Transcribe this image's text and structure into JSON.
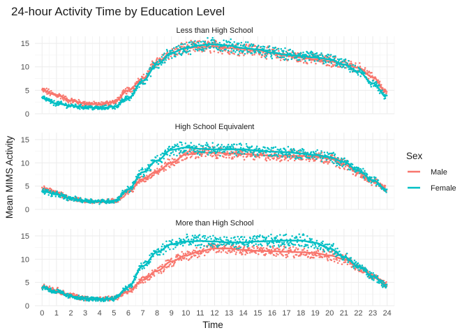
{
  "chart_data": {
    "type": "scatter",
    "title": "24-hour Activity Time by Education Level",
    "xlabel": "Time",
    "ylabel": "Mean MIMS Activity",
    "xlim": [
      -0.5,
      24.5
    ],
    "ylim": [
      0,
      16.5
    ],
    "x_ticks": [
      0,
      1,
      2,
      3,
      4,
      5,
      6,
      7,
      8,
      9,
      10,
      11,
      12,
      13,
      14,
      15,
      16,
      17,
      18,
      19,
      20,
      21,
      22,
      23,
      24
    ],
    "y_ticks": [
      0,
      5,
      10,
      15
    ],
    "grid": true,
    "smooth_lines": true,
    "legend": {
      "title": "Sex",
      "position": "right",
      "entries": [
        {
          "name": "Male",
          "color": "#F8766D"
        },
        {
          "name": "Female",
          "color": "#00BFC4"
        }
      ]
    },
    "panels": [
      {
        "label": "Less than High School",
        "series": [
          {
            "name": "Male",
            "color": "#F8766D",
            "x": [
              0,
              1,
              2,
              3,
              4,
              5,
              6,
              7,
              8,
              9,
              10,
              11,
              12,
              13,
              14,
              15,
              16,
              17,
              18,
              19,
              20,
              21,
              22,
              23,
              24
            ],
            "y": [
              5,
              4,
              2.8,
              2.2,
              2,
              2.5,
              5,
              7.5,
              11,
              13,
              14,
              14.2,
              14.3,
              14,
              13.8,
              13.5,
              12.9,
              12.4,
              12,
              11.6,
              11.2,
              10.5,
              9.8,
              7.8,
              4.5
            ]
          },
          {
            "name": "Female",
            "color": "#00BFC4",
            "x": [
              0,
              1,
              2,
              3,
              4,
              5,
              6,
              7,
              8,
              9,
              10,
              11,
              12,
              13,
              14,
              15,
              16,
              17,
              18,
              19,
              20,
              21,
              22,
              23,
              24
            ],
            "y": [
              3.3,
              2.2,
              1.7,
              1.4,
              1.2,
              1.5,
              3.3,
              7,
              10.5,
              13,
              14,
              14.6,
              14.8,
              14.5,
              14,
              13.7,
              13,
              12.6,
              12.3,
              12,
              11.6,
              10.5,
              9,
              6.5,
              3.5
            ]
          }
        ]
      },
      {
        "label": "High School Equivalent",
        "series": [
          {
            "name": "Male",
            "color": "#F8766D",
            "x": [
              0,
              1,
              2,
              3,
              4,
              5,
              6,
              7,
              8,
              9,
              10,
              11,
              12,
              13,
              14,
              15,
              16,
              17,
              18,
              19,
              20,
              21,
              22,
              23,
              24
            ],
            "y": [
              4.5,
              3.6,
              2.4,
              1.8,
              1.6,
              1.8,
              3.8,
              6.5,
              8.2,
              10,
              11.8,
              12.2,
              12.2,
              12,
              11.9,
              11.7,
              11.5,
              11.5,
              11.5,
              11.4,
              10.9,
              9.7,
              7.8,
              6,
              4.5
            ]
          },
          {
            "name": "Female",
            "color": "#00BFC4",
            "x": [
              0,
              1,
              2,
              3,
              4,
              5,
              6,
              7,
              8,
              9,
              10,
              11,
              12,
              13,
              14,
              15,
              16,
              17,
              18,
              19,
              20,
              21,
              22,
              23,
              24
            ],
            "y": [
              4,
              3.2,
              2.3,
              1.9,
              1.7,
              1.8,
              4.3,
              8,
              10.5,
              12.8,
              13.3,
              13,
              12.9,
              12.9,
              12.9,
              12.6,
              12.4,
              12.3,
              12,
              11.7,
              11.2,
              10.2,
              8.3,
              6.3,
              4.2
            ]
          }
        ]
      },
      {
        "label": "More than High School",
        "series": [
          {
            "name": "Male",
            "color": "#F8766D",
            "x": [
              0,
              1,
              2,
              3,
              4,
              5,
              6,
              7,
              8,
              9,
              10,
              11,
              12,
              13,
              14,
              15,
              16,
              17,
              18,
              19,
              20,
              21,
              22,
              23,
              24
            ],
            "y": [
              4.2,
              3.3,
              2.2,
              1.6,
              1.4,
              1.6,
              3,
              5.5,
              7.5,
              9.5,
              10.8,
              11.7,
              12.3,
              12.3,
              12,
              11.8,
              11.7,
              11.6,
              11.5,
              11.3,
              10.8,
              10,
              8.2,
              6.5,
              4.5
            ]
          },
          {
            "name": "Female",
            "color": "#00BFC4",
            "x": [
              0,
              1,
              2,
              3,
              4,
              5,
              6,
              7,
              8,
              9,
              10,
              11,
              12,
              13,
              14,
              15,
              16,
              17,
              18,
              19,
              20,
              21,
              22,
              23,
              24
            ],
            "y": [
              4,
              3,
              2,
              1.5,
              1.3,
              1.6,
              4,
              8.5,
              11.5,
              13.2,
              13.8,
              13.9,
              13.8,
              13.6,
              13.6,
              13.8,
              13.9,
              14,
              14,
              13.5,
              12.3,
              10.5,
              8.5,
              6.3,
              4.2
            ]
          }
        ]
      }
    ]
  }
}
